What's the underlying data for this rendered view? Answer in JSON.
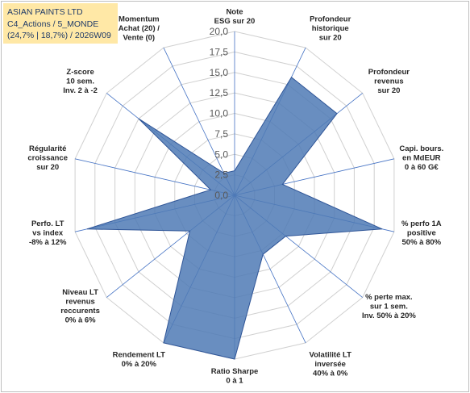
{
  "header": {
    "line1": "ASIAN PAINTS LTD",
    "line2": "C4_Actions / 5_MONDE",
    "line3": "(24,7% | 18,7%) / 2026W09"
  },
  "colors": {
    "fill": "#4f7ab5",
    "stroke": "#2f5597",
    "grid": "#d0d0d0",
    "spoke": "#4472c4",
    "header_bg": "#ffe8a6"
  },
  "chart_data": {
    "type": "radar",
    "title": "",
    "rlim": [
      0,
      20
    ],
    "grid": true,
    "ticks": [
      "0,0",
      "2,5",
      "5,0",
      "7,5",
      "10,0",
      "12,5",
      "15,0",
      "17,5",
      "20,0"
    ],
    "tick_values": [
      0,
      2.5,
      5,
      7.5,
      10,
      12.5,
      15,
      17.5,
      20
    ],
    "axes": [
      {
        "label": [
          "Note",
          "ESG sur 20"
        ],
        "value": 3
      },
      {
        "label": [
          "Profondeur",
          "historique",
          "sur 20"
        ],
        "value": 16
      },
      {
        "label": [
          "Profondeur",
          "revenus",
          "sur 20"
        ],
        "value": 16
      },
      {
        "label": [
          "Capi. bours.",
          "en MdEUR",
          "0 à 60 G€"
        ],
        "value": 6
      },
      {
        "label": [
          "% perfo 1A",
          "positive",
          "50% à 80%"
        ],
        "value": 18.5
      },
      {
        "label": [
          "% perte max.",
          "sur 1 sem.",
          "Inv. 50% à 20%"
        ],
        "value": 8
      },
      {
        "label": [
          "Volatilité LT",
          "inversée",
          "40% à 0%"
        ],
        "value": 8
      },
      {
        "label": [
          "Ratio Sharpe",
          "0 à 1"
        ],
        "value": 20
      },
      {
        "label": [
          "Rendement LT",
          "0% à 20%"
        ],
        "value": 20
      },
      {
        "label": [
          "Niveau LT",
          "revenus",
          "reccurents",
          "0% à 6%"
        ],
        "value": 7
      },
      {
        "label": [
          "Perfo. LT",
          "vs index",
          "-8% à 12%"
        ],
        "value": 18.5
      },
      {
        "label": [
          "Régularité",
          "croissance",
          "sur 20"
        ],
        "value": 3
      },
      {
        "label": [
          "Z-score",
          "10 sem.",
          "Inv. 2 à -2"
        ],
        "value": 15
      },
      {
        "label": [
          "Momentum",
          "Achat (20) /",
          "Vente (0)"
        ],
        "value": 3
      }
    ]
  }
}
